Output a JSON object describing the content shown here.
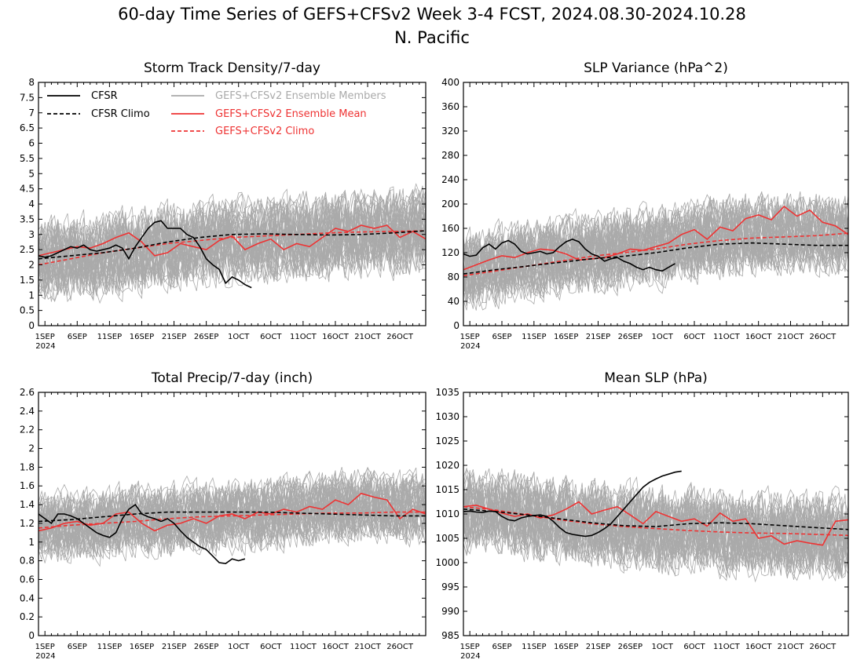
{
  "header": {
    "title": "60-day Time Series of GEFS+CFSv2 Week 3-4 FCST, 2024.08.30-2024.10.28",
    "region": "N. Pacific"
  },
  "colors": {
    "cfsr": "#000000",
    "cfsr_climo": "#000000",
    "ensemble_members": "#aaaaaa",
    "ensemble_mean": "#ee3333",
    "gefs_climo": "#ee3333"
  },
  "chart_data": [
    {
      "type": "line",
      "title": "Storm Track Density/7-day",
      "x_labels": [
        "1SEP",
        "6SEP",
        "11SEP",
        "16SEP",
        "21SEP",
        "26SEP",
        "1OCT",
        "6OCT",
        "11OCT",
        "16OCT",
        "21OCT",
        "26OCT"
      ],
      "x_year": "2024",
      "ylim": [
        0,
        8
      ],
      "yticks": [
        0,
        0.5,
        1,
        1.5,
        2,
        2.5,
        3,
        3.5,
        4,
        4.5,
        5,
        5.5,
        6,
        6.5,
        7,
        7.5,
        8
      ],
      "legend": {
        "cfsr": "CFSR",
        "cfsr_climo": "CFSR Climo",
        "members": "GEFS+CFSv2 Ensemble Members",
        "mean": "GEFS+CFSv2 Ensemble Mean",
        "gefs_climo": "GEFS+CFSv2 Climo"
      },
      "series": [
        {
          "name": "CFSR",
          "x": [
            -1,
            0,
            1,
            2,
            3,
            4,
            5,
            6,
            7,
            8,
            9,
            10,
            11,
            12,
            13,
            14,
            15,
            16,
            17,
            18,
            19,
            20,
            21,
            22,
            23,
            24,
            25,
            26,
            27,
            28,
            29,
            30,
            31,
            32
          ],
          "values": [
            2.3,
            2.25,
            2.3,
            2.4,
            2.5,
            2.6,
            2.55,
            2.65,
            2.5,
            2.45,
            2.5,
            2.55,
            2.65,
            2.55,
            2.2,
            2.6,
            2.9,
            3.2,
            3.4,
            3.45,
            3.2,
            3.2,
            3.2,
            3.0,
            2.9,
            2.6,
            2.2,
            2.0,
            1.85,
            1.4,
            1.6,
            1.5,
            1.35,
            1.25
          ]
        },
        {
          "name": "CFSR Climo",
          "x": [
            -1,
            4,
            9,
            14,
            19,
            24,
            29,
            34,
            39,
            44,
            49,
            54,
            59
          ],
          "values": [
            2.2,
            2.3,
            2.4,
            2.55,
            2.75,
            2.9,
            3.0,
            3.02,
            3.0,
            2.98,
            3.0,
            3.05,
            3.12
          ]
        },
        {
          "name": "GEFS+CFSv2 Ensemble Mean",
          "x": [
            -1,
            1,
            3,
            5,
            7,
            9,
            11,
            13,
            15,
            17,
            19,
            21,
            23,
            25,
            27,
            29,
            31,
            33,
            35,
            37,
            39,
            41,
            43,
            45,
            47,
            49,
            51,
            53,
            55,
            57,
            59
          ],
          "values": [
            2.3,
            2.4,
            2.5,
            2.6,
            2.55,
            2.7,
            2.9,
            3.05,
            2.75,
            2.3,
            2.4,
            2.7,
            2.6,
            2.5,
            2.8,
            2.95,
            2.5,
            2.7,
            2.85,
            2.5,
            2.7,
            2.6,
            2.9,
            3.2,
            3.1,
            3.3,
            3.2,
            3.3,
            2.9,
            3.1,
            2.85
          ]
        },
        {
          "name": "GEFS+CFSv2 Climo",
          "x": [
            -1,
            4,
            9,
            14,
            19,
            24,
            29,
            34,
            39,
            44,
            49,
            54,
            59
          ],
          "values": [
            2.0,
            2.2,
            2.4,
            2.55,
            2.7,
            2.8,
            2.9,
            2.95,
            3.0,
            3.05,
            3.08,
            3.1,
            3.12
          ]
        }
      ],
      "members": {
        "count": 40,
        "base": [
          2.1,
          2.2,
          2.3,
          2.45,
          2.6,
          2.7,
          2.8,
          2.85,
          2.9,
          2.95,
          3.0,
          3.05,
          3.1
        ],
        "spread": 1.3
      }
    },
    {
      "type": "line",
      "title": "SLP Variance (hPa^2)",
      "x_labels": [
        "1SEP",
        "6SEP",
        "11SEP",
        "16SEP",
        "21SEP",
        "26SEP",
        "1OCT",
        "6OCT",
        "11OCT",
        "16OCT",
        "21OCT",
        "26OCT"
      ],
      "x_year": "2024",
      "ylim": [
        0,
        400
      ],
      "yticks": [
        0,
        40,
        80,
        120,
        160,
        200,
        240,
        280,
        320,
        360,
        400
      ],
      "series": [
        {
          "name": "CFSR",
          "x": [
            -1,
            0,
            1,
            2,
            3,
            4,
            5,
            6,
            7,
            8,
            9,
            10,
            11,
            12,
            13,
            14,
            15,
            16,
            17,
            18,
            19,
            20,
            21,
            22,
            23,
            24,
            25,
            26,
            27,
            28,
            29,
            30,
            31,
            32
          ],
          "values": [
            118,
            114,
            116,
            128,
            134,
            126,
            136,
            140,
            134,
            122,
            118,
            120,
            122,
            118,
            120,
            130,
            138,
            142,
            138,
            126,
            118,
            114,
            106,
            110,
            112,
            106,
            102,
            96,
            92,
            96,
            92,
            90,
            96,
            102
          ]
        },
        {
          "name": "CFSR Climo",
          "x": [
            -1,
            4,
            9,
            14,
            19,
            24,
            29,
            34,
            39,
            44,
            49,
            54,
            59
          ],
          "values": [
            85,
            92,
            98,
            104,
            110,
            114,
            120,
            128,
            134,
            136,
            134,
            132,
            132
          ]
        },
        {
          "name": "GEFS+CFSv2 Ensemble Mean",
          "x": [
            -1,
            1,
            3,
            5,
            7,
            9,
            11,
            13,
            15,
            17,
            19,
            21,
            23,
            25,
            27,
            29,
            31,
            33,
            35,
            37,
            39,
            41,
            43,
            45,
            47,
            49,
            51,
            53,
            55,
            57,
            59
          ],
          "values": [
            92,
            100,
            108,
            115,
            112,
            120,
            126,
            124,
            118,
            108,
            110,
            112,
            118,
            126,
            124,
            130,
            136,
            150,
            158,
            142,
            162,
            156,
            176,
            182,
            174,
            196,
            180,
            190,
            170,
            164,
            150
          ]
        },
        {
          "name": "GEFS+CFSv2 Climo",
          "x": [
            -1,
            4,
            9,
            14,
            19,
            24,
            29,
            34,
            39,
            44,
            49,
            54,
            59
          ],
          "values": [
            82,
            90,
            98,
            106,
            114,
            120,
            126,
            134,
            140,
            144,
            146,
            148,
            152
          ]
        }
      ],
      "members": {
        "count": 40,
        "base": [
          92,
          100,
          106,
          112,
          118,
          124,
          130,
          138,
          146,
          150,
          152,
          152,
          150
        ],
        "spread": 60
      }
    },
    {
      "type": "line",
      "title": "Total Precip/7-day (inch)",
      "x_labels": [
        "1SEP",
        "6SEP",
        "11SEP",
        "16SEP",
        "21SEP",
        "26SEP",
        "1OCT",
        "6OCT",
        "11OCT",
        "16OCT",
        "21OCT",
        "26OCT"
      ],
      "x_year": "2024",
      "ylim": [
        0,
        2.6
      ],
      "yticks": [
        0,
        0.2,
        0.4,
        0.6,
        0.8,
        1,
        1.2,
        1.4,
        1.6,
        1.8,
        2,
        2.2,
        2.4,
        2.6
      ],
      "series": [
        {
          "name": "CFSR",
          "x": [
            -1,
            0,
            1,
            2,
            3,
            4,
            5,
            6,
            7,
            8,
            9,
            10,
            11,
            12,
            13,
            14,
            15,
            16,
            17,
            18,
            19,
            20,
            21,
            22,
            23,
            24,
            25,
            26,
            27,
            28,
            29,
            30,
            31
          ],
          "values": [
            1.3,
            1.25,
            1.2,
            1.3,
            1.3,
            1.28,
            1.25,
            1.2,
            1.15,
            1.1,
            1.07,
            1.05,
            1.1,
            1.25,
            1.35,
            1.4,
            1.3,
            1.27,
            1.25,
            1.22,
            1.25,
            1.2,
            1.12,
            1.05,
            1.0,
            0.95,
            0.92,
            0.85,
            0.78,
            0.77,
            0.82,
            0.8,
            0.82
          ]
        },
        {
          "name": "CFSR Climo",
          "x": [
            -1,
            4,
            9,
            14,
            19,
            24,
            29,
            34,
            39,
            44,
            49,
            54,
            59
          ],
          "values": [
            1.22,
            1.24,
            1.27,
            1.3,
            1.32,
            1.32,
            1.32,
            1.32,
            1.31,
            1.3,
            1.29,
            1.28,
            1.28
          ]
        },
        {
          "name": "GEFS+CFSv2 Ensemble Mean",
          "x": [
            -1,
            1,
            3,
            5,
            7,
            9,
            11,
            13,
            15,
            17,
            19,
            21,
            23,
            25,
            27,
            29,
            31,
            33,
            35,
            37,
            39,
            41,
            43,
            45,
            47,
            49,
            51,
            53,
            55,
            57,
            59
          ],
          "values": [
            1.12,
            1.15,
            1.2,
            1.22,
            1.18,
            1.2,
            1.3,
            1.32,
            1.2,
            1.12,
            1.18,
            1.2,
            1.25,
            1.2,
            1.28,
            1.3,
            1.25,
            1.32,
            1.3,
            1.35,
            1.32,
            1.38,
            1.35,
            1.45,
            1.4,
            1.52,
            1.48,
            1.45,
            1.25,
            1.35,
            1.3
          ]
        },
        {
          "name": "GEFS+CFSv2 Climo",
          "x": [
            -1,
            4,
            9,
            14,
            19,
            24,
            29,
            34,
            39,
            44,
            49,
            54,
            59
          ],
          "values": [
            1.15,
            1.18,
            1.2,
            1.22,
            1.25,
            1.27,
            1.28,
            1.29,
            1.3,
            1.31,
            1.31,
            1.32,
            1.32
          ]
        }
      ],
      "members": {
        "count": 40,
        "base": [
          1.15,
          1.18,
          1.2,
          1.22,
          1.25,
          1.27,
          1.28,
          1.3,
          1.33,
          1.38,
          1.4,
          1.38,
          1.35
        ],
        "spread": 0.35
      }
    },
    {
      "type": "line",
      "title": "Mean SLP (hPa)",
      "x_labels": [
        "1SEP",
        "6SEP",
        "11SEP",
        "16SEP",
        "21SEP",
        "26SEP",
        "1OCT",
        "6OCT",
        "11OCT",
        "16OCT",
        "21OCT",
        "26OCT"
      ],
      "x_year": "2024",
      "ylim": [
        985,
        1035
      ],
      "yticks": [
        985,
        990,
        995,
        1000,
        1005,
        1010,
        1015,
        1020,
        1025,
        1030,
        1035
      ],
      "series": [
        {
          "name": "CFSR",
          "x": [
            -1,
            0,
            1,
            2,
            3,
            4,
            5,
            6,
            7,
            8,
            9,
            10,
            11,
            12,
            13,
            14,
            15,
            16,
            17,
            18,
            19,
            20,
            21,
            22,
            23,
            24,
            25,
            26,
            27,
            28,
            29,
            30,
            31,
            32,
            33
          ],
          "values": [
            1010.5,
            1010.6,
            1010.4,
            1010.3,
            1010.6,
            1010.5,
            1009.5,
            1008.8,
            1008.6,
            1009.2,
            1009.5,
            1009.7,
            1009.8,
            1009.5,
            1008.5,
            1007.2,
            1006.2,
            1005.8,
            1005.6,
            1005.4,
            1005.6,
            1006.2,
            1007.0,
            1008.0,
            1009.5,
            1011.0,
            1012.5,
            1014.0,
            1015.5,
            1016.5,
            1017.2,
            1017.8,
            1018.2,
            1018.6,
            1018.8
          ]
        },
        {
          "name": "CFSR Climo",
          "x": [
            -1,
            4,
            9,
            14,
            19,
            24,
            29,
            34,
            39,
            44,
            49,
            54,
            59
          ],
          "values": [
            1011.0,
            1010.5,
            1009.8,
            1009.0,
            1008.2,
            1007.6,
            1007.4,
            1008.0,
            1008.2,
            1008.0,
            1007.6,
            1007.2,
            1006.8
          ]
        },
        {
          "name": "GEFS+CFSv2 Ensemble Mean",
          "x": [
            -1,
            1,
            3,
            5,
            7,
            9,
            11,
            13,
            15,
            17,
            19,
            21,
            23,
            25,
            27,
            29,
            31,
            33,
            35,
            37,
            39,
            41,
            43,
            45,
            47,
            49,
            51,
            53,
            55,
            57,
            59
          ],
          "values": [
            1011.5,
            1011.8,
            1011.0,
            1010.2,
            1009.5,
            1010.0,
            1009.2,
            1009.8,
            1011.0,
            1012.5,
            1010.0,
            1010.8,
            1011.5,
            1009.8,
            1008.0,
            1010.5,
            1009.5,
            1008.5,
            1009.0,
            1007.5,
            1010.2,
            1008.5,
            1009.0,
            1005.0,
            1005.5,
            1003.8,
            1004.5,
            1004.0,
            1003.6,
            1008.5,
            1008.8
          ]
        },
        {
          "name": "GEFS+CFSv2 Climo",
          "x": [
            -1,
            4,
            9,
            14,
            19,
            24,
            29,
            34,
            39,
            44,
            49,
            54,
            59
          ],
          "values": [
            1011.5,
            1010.8,
            1009.8,
            1008.8,
            1008.0,
            1007.4,
            1007.0,
            1006.6,
            1006.3,
            1006.1,
            1006.0,
            1005.8,
            1005.6
          ]
        }
      ],
      "members": {
        "count": 40,
        "base": [
          1011.0,
          1010.5,
          1009.5,
          1008.8,
          1008.0,
          1007.5,
          1007.0,
          1006.5,
          1006.0,
          1005.5,
          1005.5,
          1005.5,
          1005.5
        ],
        "spread": 8
      }
    }
  ]
}
